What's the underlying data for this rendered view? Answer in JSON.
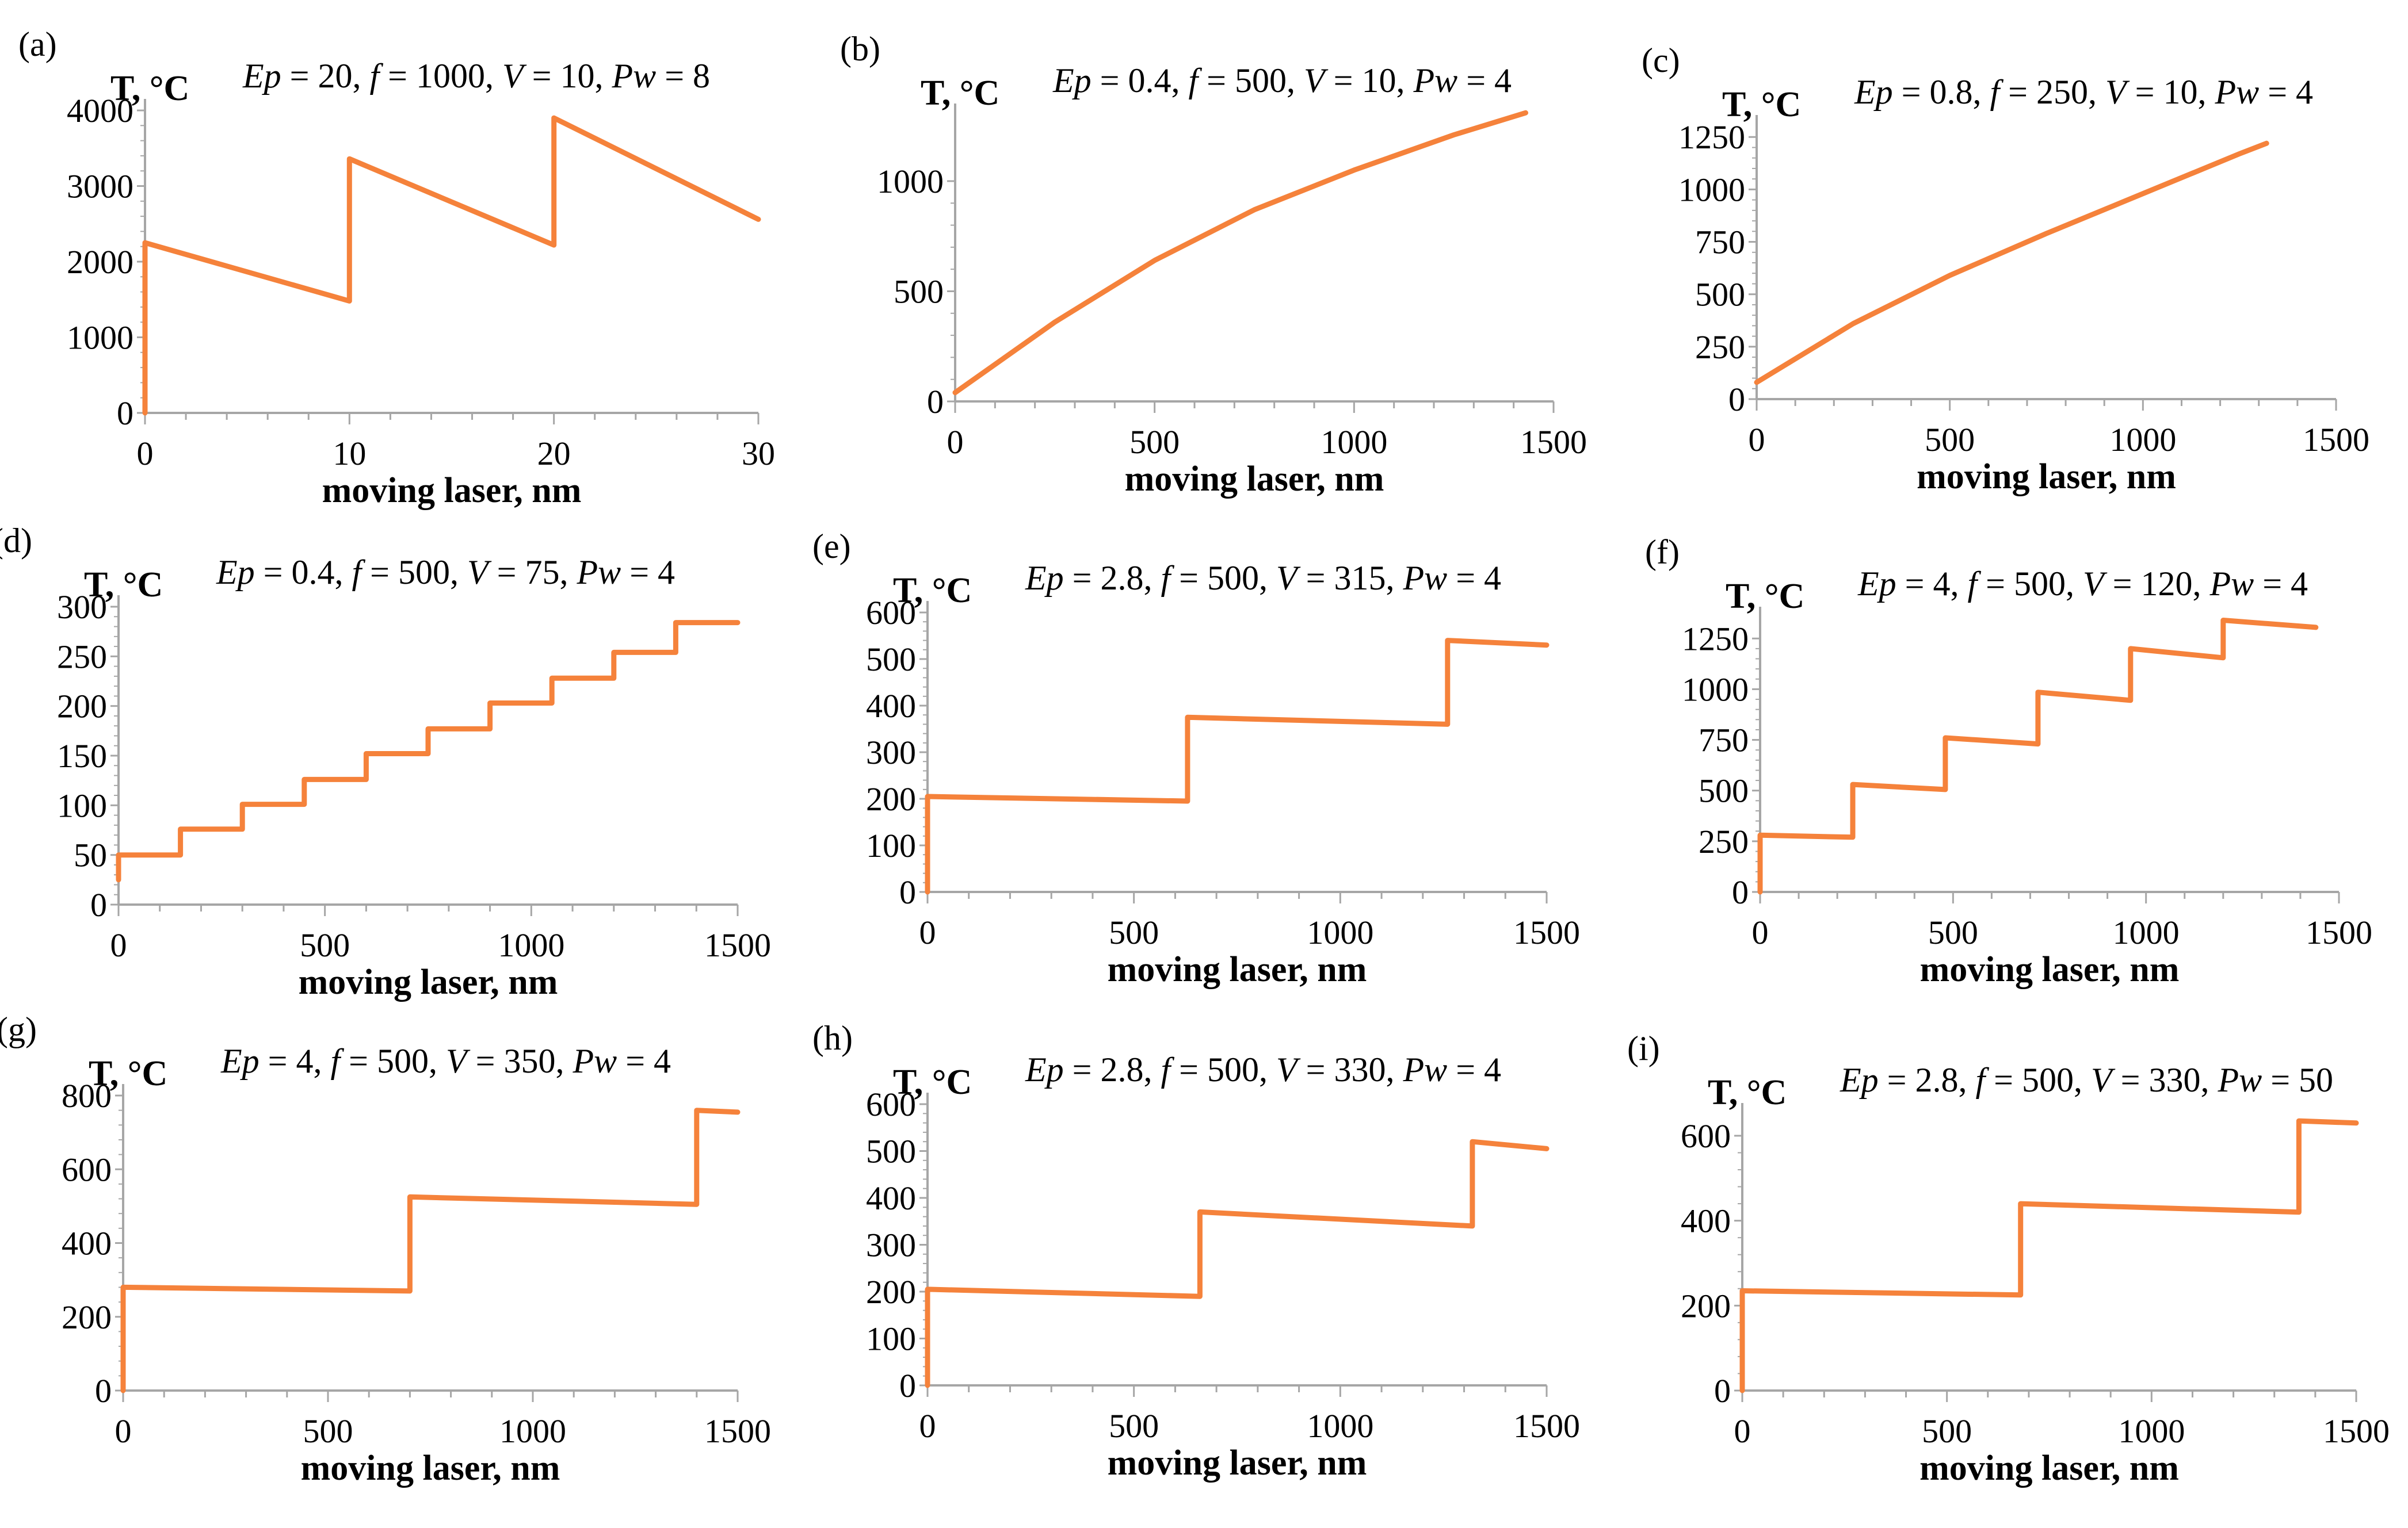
{
  "figure": {
    "line_color": "#F5823B",
    "axis_color": "#A6A6A6"
  },
  "chart_data": [
    {
      "type": "line",
      "panel": "(a)",
      "ylabel": "T, °C",
      "xlabel": "moving laser, nm",
      "params": {
        "Ep": "20",
        "f": "1000",
        "V": "10",
        "Pw": "8"
      },
      "xlim": [
        0,
        30
      ],
      "xticks": [
        "0",
        "10",
        "20",
        "30"
      ],
      "ylim": [
        0,
        4000
      ],
      "yticks": [
        "0",
        "1000",
        "2000",
        "3000",
        "4000"
      ],
      "series": [
        {
          "name": "T",
          "x": [
            0,
            0,
            10,
            10,
            20,
            20,
            30
          ],
          "y": [
            0,
            2250,
            1480,
            3360,
            2220,
            3900,
            2560
          ]
        }
      ]
    },
    {
      "type": "line",
      "panel": "(b)",
      "ylabel": "T, °C",
      "xlabel": "moving laser, nm",
      "params": {
        "Ep": "0.4",
        "f": "500",
        "V": "10",
        "Pw": "4"
      },
      "xlim": [
        0,
        1500
      ],
      "xticks": [
        "0",
        "500",
        "1000",
        "1500"
      ],
      "ylim": [
        0,
        1300
      ],
      "yticks": [
        "0",
        "500",
        "1000"
      ],
      "series": [
        {
          "name": "T",
          "x": [
            0,
            250,
            500,
            750,
            1000,
            1250,
            1430
          ],
          "y": [
            40,
            360,
            640,
            870,
            1050,
            1210,
            1310
          ]
        }
      ]
    },
    {
      "type": "line",
      "panel": "(c)",
      "ylabel": "T, °C",
      "xlabel": "moving laser, nm",
      "params": {
        "Ep": "0.8",
        "f": "250",
        "V": "10",
        "Pw": "4"
      },
      "xlim": [
        0,
        1500
      ],
      "xticks": [
        "0",
        "500",
        "1000",
        "1500"
      ],
      "ylim": [
        0,
        1300
      ],
      "yticks": [
        "0",
        "250",
        "500",
        "750",
        "1000",
        "1250"
      ],
      "series": [
        {
          "name": "T",
          "x": [
            0,
            250,
            500,
            750,
            1000,
            1250,
            1320
          ],
          "y": [
            80,
            360,
            590,
            790,
            980,
            1170,
            1220
          ]
        }
      ]
    },
    {
      "type": "line",
      "panel": "(d)",
      "ylabel": "T, °C",
      "xlabel": "moving laser, nm",
      "params": {
        "Ep": "0.4",
        "f": "500",
        "V": "75",
        "Pw": "4"
      },
      "xlim": [
        0,
        1500
      ],
      "xticks": [
        "0",
        "500",
        "1000",
        "1500"
      ],
      "ylim": [
        0,
        300
      ],
      "yticks": [
        "0",
        "50",
        "100",
        "150",
        "200",
        "250",
        "300"
      ],
      "series": [
        {
          "name": "T",
          "x": [
            0,
            0,
            150,
            150,
            300,
            300,
            450,
            450,
            600,
            600,
            750,
            750,
            900,
            900,
            1050,
            1050,
            1200,
            1200,
            1350,
            1350,
            1500
          ],
          "y": [
            25,
            50,
            50,
            76,
            76,
            101,
            101,
            126,
            126,
            152,
            152,
            177,
            177,
            203,
            203,
            228,
            228,
            254,
            254,
            284,
            284
          ]
        }
      ]
    },
    {
      "type": "line",
      "panel": "(e)",
      "ylabel": "T, °C",
      "xlabel": "moving laser, nm",
      "params": {
        "Ep": "2.8",
        "f": "500",
        "V": "315",
        "Pw": "4"
      },
      "xlim": [
        0,
        1500
      ],
      "xticks": [
        "0",
        "500",
        "1000",
        "1500"
      ],
      "ylim": [
        0,
        600
      ],
      "yticks": [
        "0",
        "100",
        "200",
        "300",
        "400",
        "500",
        "600"
      ],
      "series": [
        {
          "name": "T",
          "x": [
            0,
            0,
            630,
            630,
            1260,
            1260,
            1500
          ],
          "y": [
            0,
            205,
            195,
            375,
            360,
            540,
            530
          ]
        }
      ]
    },
    {
      "type": "line",
      "panel": "(f)",
      "ylabel": "T, °C",
      "xlabel": "moving laser, nm",
      "params": {
        "Ep": "4",
        "f": "500",
        "V": "120",
        "Pw": "4"
      },
      "xlim": [
        0,
        1500
      ],
      "xticks": [
        "0",
        "500",
        "1000",
        "1500"
      ],
      "ylim": [
        0,
        1350
      ],
      "yticks": [
        "0",
        "250",
        "500",
        "750",
        "1000",
        "1250"
      ],
      "series": [
        {
          "name": "T",
          "x": [
            0,
            0,
            240,
            240,
            480,
            480,
            720,
            720,
            960,
            960,
            1200,
            1200,
            1440
          ],
          "y": [
            0,
            280,
            270,
            530,
            505,
            760,
            730,
            985,
            945,
            1200,
            1155,
            1340,
            1305
          ]
        }
      ]
    },
    {
      "type": "line",
      "panel": "(g)",
      "ylabel": "T, °C",
      "xlabel": "moving laser, nm",
      "params": {
        "Ep": "4",
        "f": "500",
        "V": "350",
        "Pw": "4"
      },
      "xlim": [
        0,
        1500
      ],
      "xticks": [
        "0",
        "500",
        "1000",
        "1500"
      ],
      "ylim": [
        0,
        800
      ],
      "yticks": [
        "0",
        "200",
        "400",
        "600",
        "800"
      ],
      "series": [
        {
          "name": "T",
          "x": [
            0,
            0,
            700,
            700,
            1400,
            1400,
            1500
          ],
          "y": [
            0,
            280,
            270,
            525,
            505,
            760,
            755
          ]
        }
      ]
    },
    {
      "type": "line",
      "panel": "(h)",
      "ylabel": "T, °C",
      "xlabel": "moving laser, nm",
      "params": {
        "Ep": "2.8",
        "f": "500",
        "V": "330",
        "Pw": "4"
      },
      "xlim": [
        0,
        1500
      ],
      "xticks": [
        "0",
        "500",
        "1000",
        "1500"
      ],
      "ylim": [
        0,
        600
      ],
      "yticks": [
        "0",
        "100",
        "200",
        "300",
        "400",
        "500",
        "600"
      ],
      "series": [
        {
          "name": "T",
          "x": [
            0,
            0,
            660,
            660,
            1320,
            1320,
            1500
          ],
          "y": [
            0,
            205,
            190,
            370,
            340,
            520,
            505
          ]
        }
      ]
    },
    {
      "type": "line",
      "panel": "(i)",
      "ylabel": "T, °C",
      "xlabel": "moving laser, nm",
      "params": {
        "Ep": "2.8",
        "f": "500",
        "V": "330",
        "Pw": "50"
      },
      "xlim": [
        0,
        1500
      ],
      "xticks": [
        "0",
        "500",
        "1000",
        "1500"
      ],
      "ylim": [
        0,
        650
      ],
      "yticks": [
        "0",
        "200",
        "400",
        "600"
      ],
      "series": [
        {
          "name": "T",
          "x": [
            0,
            0,
            680,
            680,
            1360,
            1360,
            1500
          ],
          "y": [
            0,
            235,
            225,
            440,
            420,
            635,
            630
          ]
        }
      ]
    }
  ]
}
